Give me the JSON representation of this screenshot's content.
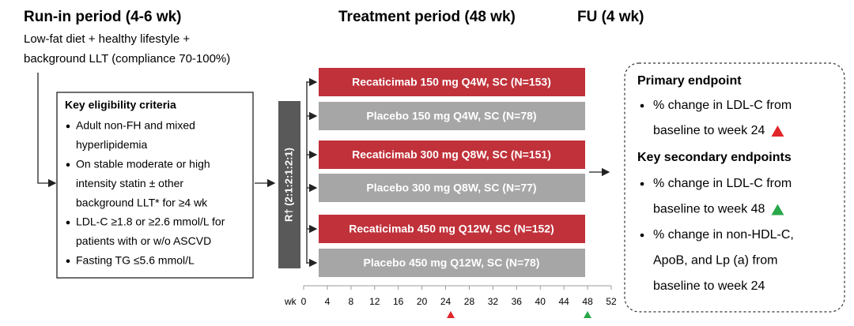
{
  "header": {
    "runin_title": "Run-in period (4-6 wk)",
    "runin_lines": [
      "Low-fat diet + healthy lifestyle +",
      "background LLT (compliance 70-100%)"
    ],
    "treatment_title": "Treatment period (48 wk)",
    "fu_title": "FU (4 wk)"
  },
  "eligibility": {
    "title": "Key eligibility criteria",
    "bullets": [
      [
        "Adult non-FH and mixed",
        "hyperlipidemia"
      ],
      [
        "On stable moderate or high",
        "intensity statin ± other",
        "background LLT* for ≥4 wk"
      ],
      [
        "LDL-C ≥1.8 or ≥2.6 mmol/L for",
        "patients with or w/o ASCVD"
      ],
      [
        "Fasting TG ≤5.6 mmol/L"
      ]
    ]
  },
  "randomization": "R† (2:1:2:1:2:1)",
  "arms": [
    "Recaticimab 150 mg Q4W, SC (N=153)",
    "Placebo 150 mg Q4W, SC (N=78)",
    "Recaticimab 300 mg Q8W, SC (N=151)",
    "Placebo 300 mg Q8W, SC (N=77)",
    "Recaticimab 450 mg Q12W, SC (N=152)",
    "Placebo 450 mg Q12W, SC (N=78)"
  ],
  "axis": {
    "unit": "wk",
    "ticks": [
      0,
      4,
      8,
      12,
      16,
      20,
      24,
      28,
      32,
      36,
      40,
      44,
      48,
      52
    ]
  },
  "endpoints": {
    "primary_title": "Primary endpoint",
    "primary": [
      [
        "% change in LDL-C from",
        "baseline to week 24"
      ]
    ],
    "secondary_title": "Key secondary endpoints",
    "secondary": [
      [
        "% change in LDL-C from",
        "baseline to week 48"
      ],
      [
        "% change in non-HDL-C,",
        "ApoB, and Lp (a) from",
        "baseline to week 24"
      ]
    ]
  }
}
